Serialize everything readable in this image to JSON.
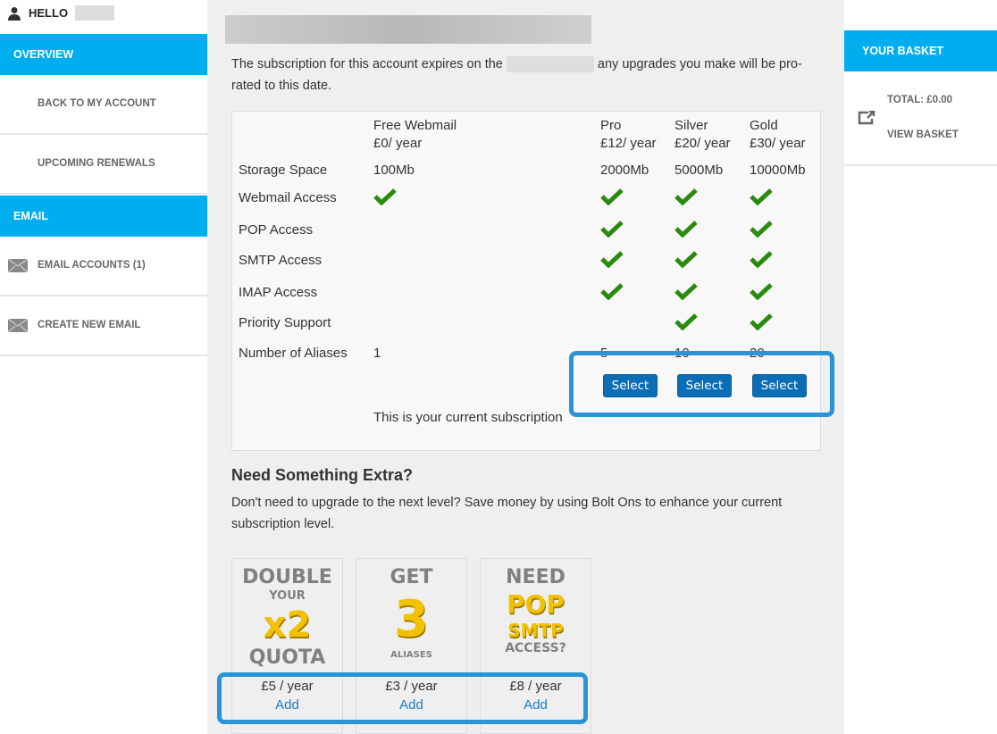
{
  "sidebar": {
    "greeting": "HELLO",
    "sections": [
      {
        "title": "OVERVIEW",
        "items": [
          {
            "label": "BACK TO MY ACCOUNT"
          },
          {
            "label": "UPCOMING RENEWALS"
          }
        ]
      },
      {
        "title": "EMAIL",
        "items": [
          {
            "label": "EMAIL ACCOUNTS (1)",
            "icon": "envelope-icon"
          },
          {
            "label": "CREATE NEW EMAIL",
            "icon": "envelope-icon"
          }
        ]
      }
    ]
  },
  "main": {
    "intro_before": "The subscription for this account expires on the",
    "intro_after": "any upgrades you make will be pro-rated to this date.",
    "plans": [
      {
        "name": "Free Webmail",
        "price": "£0/ year"
      },
      {
        "name": "Pro",
        "price": "£12/ year"
      },
      {
        "name": "Silver",
        "price": "£20/ year"
      },
      {
        "name": "Gold",
        "price": "£30/ year"
      }
    ],
    "features": [
      {
        "label": "Storage Space",
        "values": [
          "100Mb",
          "2000Mb",
          "5000Mb",
          "10000Mb"
        ]
      },
      {
        "label": "Webmail Access",
        "checks": [
          true,
          true,
          true,
          true
        ]
      },
      {
        "label": "POP Access",
        "checks": [
          false,
          true,
          true,
          true
        ]
      },
      {
        "label": "SMTP Access",
        "checks": [
          false,
          true,
          true,
          true
        ]
      },
      {
        "label": "IMAP Access",
        "checks": [
          false,
          true,
          true,
          true
        ]
      },
      {
        "label": "Priority Support",
        "checks": [
          false,
          false,
          true,
          true
        ]
      },
      {
        "label": "Number of Aliases",
        "values": [
          "1",
          "5",
          "10",
          "20"
        ]
      }
    ],
    "select_label": "Select",
    "current_label": "This is your current subscription",
    "check_color": "#2a8a0e",
    "accent_color": "#00aeef",
    "extra_title": "Need Something Extra?",
    "extra_text": "Don't need to upgrade to the next level? Save money by using Bolt Ons to enhance your current subscription level.",
    "bolt_ons": [
      {
        "logo": [
          "DOUBLE",
          "YOUR",
          "x2",
          "QUOTA"
        ],
        "price": "£5 / year",
        "action": "Add"
      },
      {
        "logo": [
          "GET",
          "3",
          "ALIASES"
        ],
        "price": "£3 / year",
        "action": "Add"
      },
      {
        "logo": [
          "NEED",
          "POP",
          "SMTP",
          "ACCESS?"
        ],
        "price": "£8 / year",
        "action": "Add"
      }
    ]
  },
  "basket": {
    "title": "YOUR BASKET",
    "total": "TOTAL: £0.00",
    "view": "VIEW BASKET"
  }
}
